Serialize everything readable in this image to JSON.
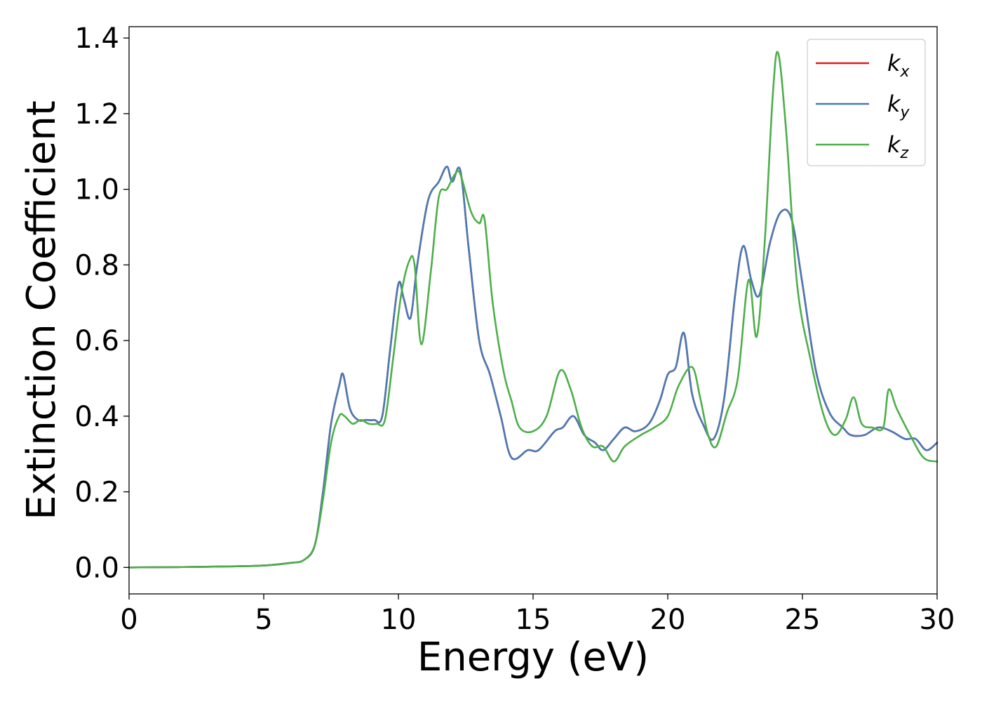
{
  "chart_data": {
    "type": "line",
    "title": "",
    "xlabel": "Energy (eV)",
    "ylabel": "Extinction Coefficient",
    "xlim": [
      0,
      30
    ],
    "ylim": [
      -0.07,
      1.43
    ],
    "xticks": [
      0,
      5,
      10,
      15,
      20,
      25,
      30
    ],
    "xtick_labels": [
      "0",
      "5",
      "10",
      "15",
      "20",
      "25",
      "30"
    ],
    "yticks": [
      0.0,
      0.2,
      0.4,
      0.6,
      0.8,
      1.0,
      1.2,
      1.4
    ],
    "ytick_labels": [
      "0.0",
      "0.2",
      "0.4",
      "0.6",
      "0.8",
      "1.0",
      "1.2",
      "1.4"
    ],
    "grid": false,
    "legend_position": "top-right",
    "series": [
      {
        "name": "kx",
        "label_base": "k",
        "label_sub": "x",
        "color": "#e41a1c",
        "x": [
          0,
          2,
          4,
          5,
          6,
          6.5,
          6.9,
          7.2,
          7.5,
          7.8,
          7.95,
          8.2,
          8.5,
          8.8,
          9.1,
          9.4,
          9.7,
          10.0,
          10.2,
          10.45,
          10.7,
          11.1,
          11.5,
          11.8,
          12.0,
          12.3,
          12.6,
          13.0,
          13.4,
          13.8,
          14.2,
          14.8,
          15.2,
          15.8,
          16.1,
          16.5,
          16.9,
          17.3,
          17.6,
          18.0,
          18.4,
          18.8,
          19.3,
          19.7,
          20.0,
          20.3,
          20.6,
          20.9,
          21.3,
          21.7,
          22.1,
          22.5,
          22.8,
          23.1,
          23.4,
          23.8,
          24.2,
          24.6,
          25.0,
          25.5,
          26.0,
          26.5,
          26.8,
          27.3,
          27.8,
          28.3,
          28.8,
          29.2,
          29.6,
          30.0
        ],
        "values": [
          0,
          0.001,
          0.003,
          0.005,
          0.012,
          0.02,
          0.06,
          0.2,
          0.38,
          0.48,
          0.51,
          0.42,
          0.39,
          0.39,
          0.39,
          0.4,
          0.58,
          0.75,
          0.71,
          0.66,
          0.8,
          0.97,
          1.02,
          1.06,
          1.02,
          1.05,
          0.85,
          0.6,
          0.51,
          0.4,
          0.29,
          0.31,
          0.31,
          0.36,
          0.37,
          0.4,
          0.35,
          0.33,
          0.31,
          0.34,
          0.37,
          0.36,
          0.38,
          0.44,
          0.51,
          0.53,
          0.62,
          0.46,
          0.38,
          0.34,
          0.45,
          0.72,
          0.85,
          0.76,
          0.72,
          0.86,
          0.94,
          0.92,
          0.75,
          0.52,
          0.41,
          0.37,
          0.35,
          0.35,
          0.37,
          0.36,
          0.34,
          0.34,
          0.31,
          0.33
        ]
      },
      {
        "name": "ky",
        "label_base": "k",
        "label_sub": "y",
        "color": "#4a7ab5",
        "x": [
          0,
          2,
          4,
          5,
          6,
          6.5,
          6.9,
          7.2,
          7.5,
          7.8,
          7.95,
          8.2,
          8.5,
          8.8,
          9.1,
          9.4,
          9.7,
          10.0,
          10.2,
          10.45,
          10.7,
          11.1,
          11.5,
          11.8,
          12.0,
          12.3,
          12.6,
          13.0,
          13.4,
          13.8,
          14.2,
          14.8,
          15.2,
          15.8,
          16.1,
          16.5,
          16.9,
          17.3,
          17.6,
          18.0,
          18.4,
          18.8,
          19.3,
          19.7,
          20.0,
          20.3,
          20.6,
          20.9,
          21.3,
          21.7,
          22.1,
          22.5,
          22.8,
          23.1,
          23.4,
          23.8,
          24.2,
          24.6,
          25.0,
          25.5,
          26.0,
          26.5,
          26.8,
          27.3,
          27.8,
          28.3,
          28.8,
          29.2,
          29.6,
          30.0
        ],
        "values": [
          0,
          0.001,
          0.003,
          0.005,
          0.012,
          0.02,
          0.06,
          0.2,
          0.38,
          0.48,
          0.51,
          0.42,
          0.39,
          0.39,
          0.39,
          0.4,
          0.58,
          0.75,
          0.71,
          0.66,
          0.8,
          0.97,
          1.02,
          1.06,
          1.02,
          1.05,
          0.85,
          0.6,
          0.51,
          0.4,
          0.29,
          0.31,
          0.31,
          0.36,
          0.37,
          0.4,
          0.35,
          0.33,
          0.31,
          0.34,
          0.37,
          0.36,
          0.38,
          0.44,
          0.51,
          0.53,
          0.62,
          0.46,
          0.38,
          0.34,
          0.45,
          0.72,
          0.85,
          0.76,
          0.72,
          0.86,
          0.94,
          0.92,
          0.75,
          0.52,
          0.41,
          0.37,
          0.35,
          0.35,
          0.37,
          0.36,
          0.34,
          0.34,
          0.31,
          0.33
        ]
      },
      {
        "name": "kz",
        "label_base": "k",
        "label_sub": "z",
        "color": "#4daf4a",
        "x": [
          0,
          2,
          4,
          5,
          6,
          6.5,
          6.9,
          7.2,
          7.5,
          7.8,
          8.0,
          8.3,
          8.6,
          8.9,
          9.2,
          9.5,
          9.8,
          10.1,
          10.4,
          10.6,
          10.85,
          11.2,
          11.5,
          11.8,
          12.1,
          12.3,
          12.7,
          13.0,
          13.2,
          13.5,
          13.9,
          14.2,
          14.5,
          15.0,
          15.5,
          16.0,
          16.4,
          16.8,
          17.2,
          17.6,
          18.0,
          18.4,
          19.0,
          19.5,
          20.0,
          20.4,
          20.9,
          21.2,
          21.5,
          21.8,
          22.2,
          22.6,
          23.0,
          23.3,
          23.6,
          23.9,
          24.1,
          24.4,
          24.8,
          25.3,
          25.8,
          26.2,
          26.6,
          26.9,
          27.2,
          27.6,
          28.0,
          28.2,
          28.5,
          29.0,
          29.5,
          30.0
        ],
        "values": [
          0,
          0.001,
          0.003,
          0.005,
          0.012,
          0.02,
          0.06,
          0.18,
          0.33,
          0.4,
          0.4,
          0.38,
          0.39,
          0.38,
          0.38,
          0.39,
          0.55,
          0.72,
          0.81,
          0.8,
          0.59,
          0.78,
          0.98,
          1.0,
          1.04,
          1.04,
          0.94,
          0.91,
          0.92,
          0.7,
          0.52,
          0.44,
          0.37,
          0.36,
          0.4,
          0.52,
          0.47,
          0.37,
          0.32,
          0.32,
          0.28,
          0.32,
          0.35,
          0.37,
          0.4,
          0.48,
          0.53,
          0.45,
          0.35,
          0.32,
          0.41,
          0.5,
          0.76,
          0.61,
          0.86,
          1.25,
          1.36,
          1.15,
          0.75,
          0.55,
          0.4,
          0.35,
          0.39,
          0.45,
          0.38,
          0.37,
          0.37,
          0.47,
          0.42,
          0.35,
          0.29,
          0.28
        ]
      }
    ]
  }
}
